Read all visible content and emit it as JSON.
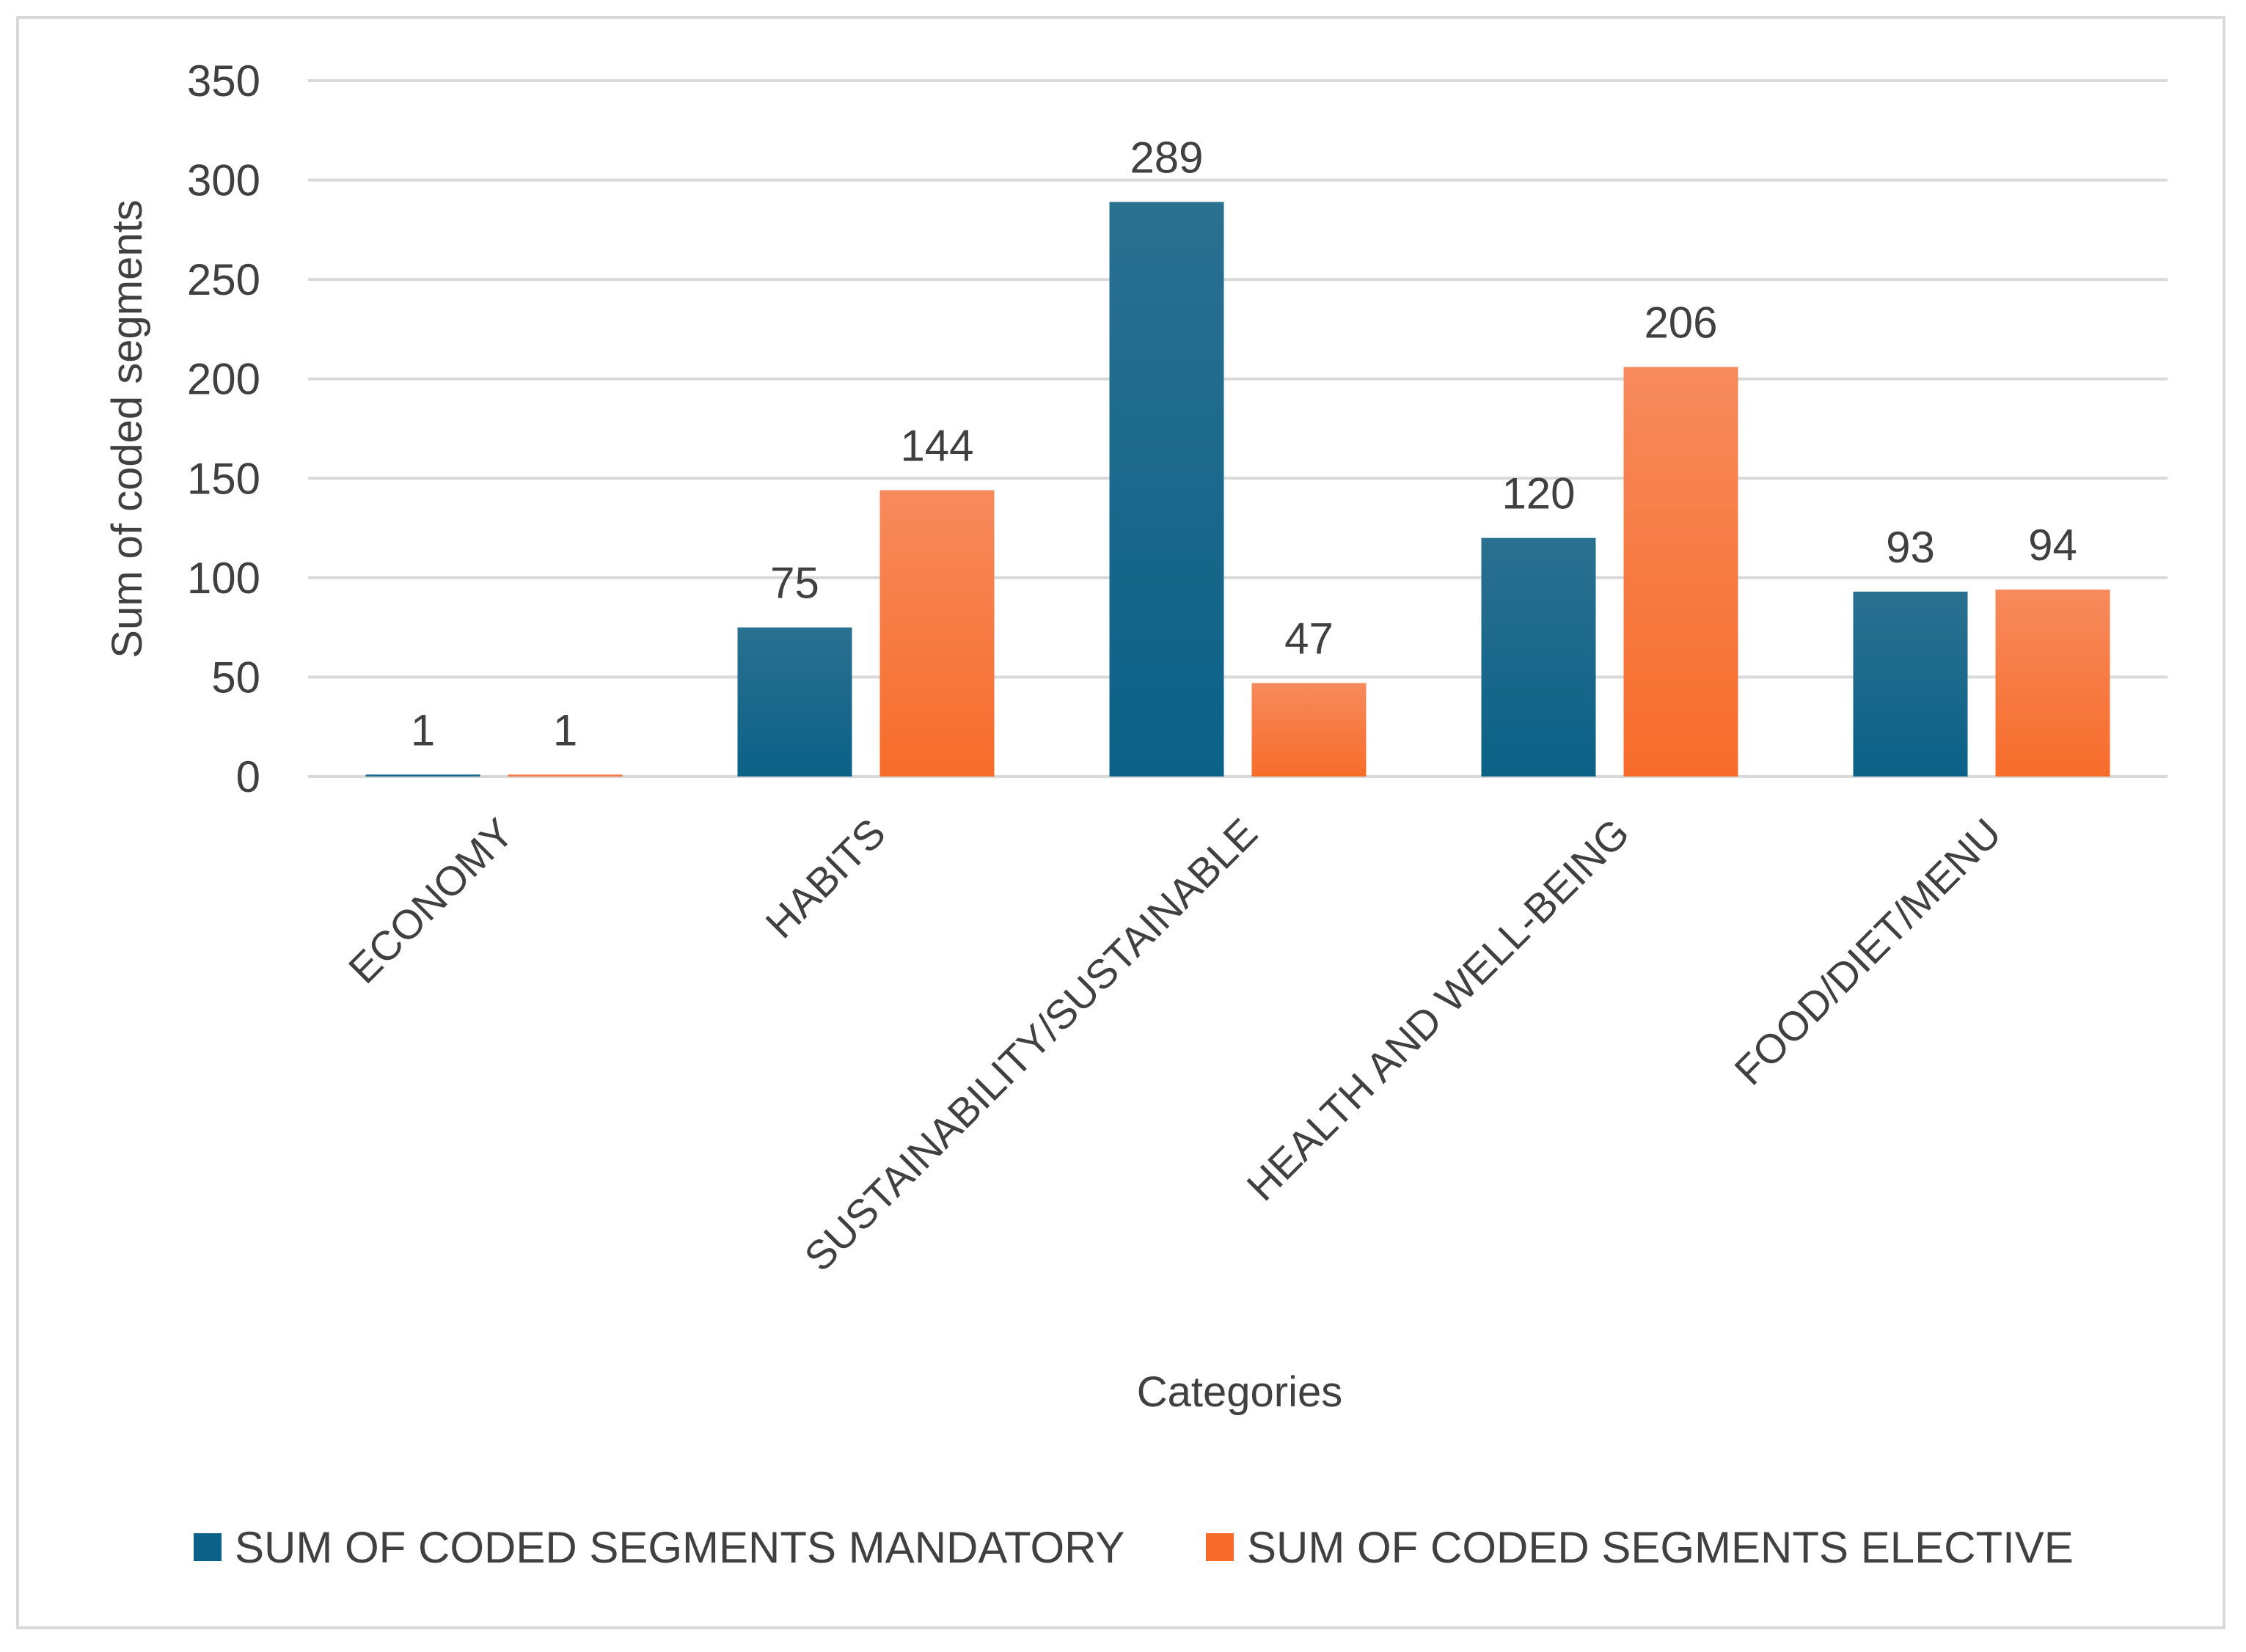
{
  "chart_data": {
    "type": "bar",
    "title": "",
    "xlabel": "Categories",
    "ylabel": "Sum of coded segments",
    "ylim": [
      0,
      350
    ],
    "yticks": [
      0,
      50,
      100,
      150,
      200,
      250,
      300,
      350
    ],
    "grid": true,
    "legend_position": "bottom",
    "categories": [
      "ECONOMY",
      "HABITS",
      "SUSTAINABILITY/SUSTAINABLE",
      "HEALTH AND WELL-BEING",
      "FOOD/DIET/MENU"
    ],
    "series": [
      {
        "name": "SUM OF CODED SEGMENTS MANDATORY",
        "values": [
          1,
          75,
          289,
          120,
          93
        ],
        "color_top": "#2a7091",
        "color_bottom": "#0b6187"
      },
      {
        "name": "SUM OF CODED SEGMENTS ELECTIVE",
        "values": [
          1,
          144,
          47,
          206,
          94
        ],
        "color_top": "#f78a5c",
        "color_bottom": "#f76c2a"
      }
    ]
  }
}
